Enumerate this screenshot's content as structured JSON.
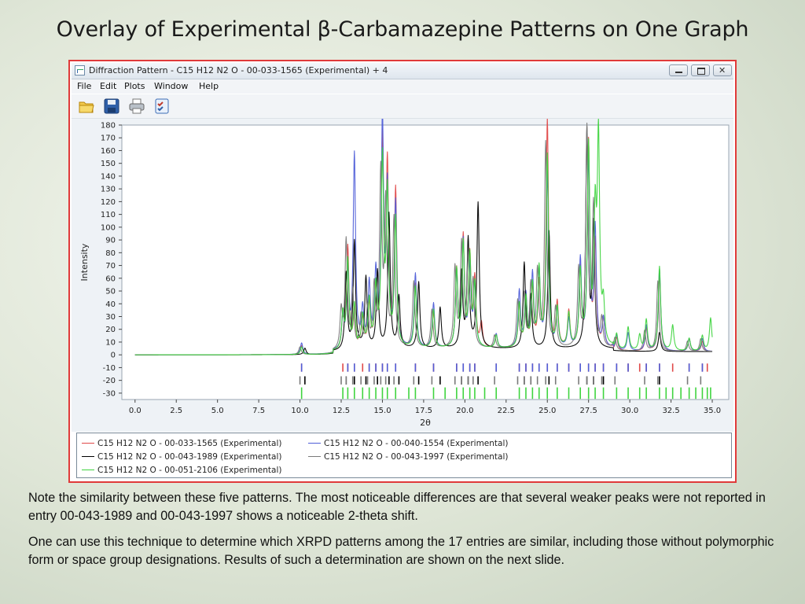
{
  "slide": {
    "title": "Overlay of Experimental β-Carbamazepine Patterns on One Graph",
    "note1": "Note the similarity between these five patterns.  The most noticeable differences are that several weaker peaks were not reported in entry 00-043-1989 and 00-043-1997 shows a noticeable 2-theta shift.",
    "note2": "One can use this technique to determine which XRPD patterns among the 17 entries are similar, including those without polymorphic form or space group designations.  Results of such a determination are shown on the next slide."
  },
  "window": {
    "title": "Diffraction Pattern - C15 H12 N2 O - 00-033-1565 (Experimental) + 4",
    "menu": [
      "File",
      "Edit",
      "Plots",
      "Window",
      "Help"
    ],
    "toolbar_icons": [
      "open-folder-icon",
      "save-disk-icon",
      "printer-icon",
      "checklist-icon"
    ]
  },
  "chart_data": {
    "type": "line",
    "xlabel": "2θ",
    "ylabel": "Intensity",
    "xlim": [
      -0.8,
      36
    ],
    "ylim": [
      -35,
      180
    ],
    "xticks": [
      0.0,
      2.5,
      5.0,
      7.5,
      10.0,
      12.5,
      15.0,
      17.5,
      20.0,
      22.5,
      25.0,
      27.5,
      30.0,
      32.5,
      35.0
    ],
    "yticks": [
      -30,
      -20,
      -10,
      0,
      10,
      20,
      30,
      40,
      50,
      60,
      70,
      80,
      90,
      100,
      110,
      120,
      130,
      140,
      150,
      160,
      170,
      180
    ],
    "x_range": [
      0,
      35
    ],
    "legend_position": "bottom",
    "series": [
      {
        "name": "C15 H12 N2 O - 00-033-1565 (Experimental)",
        "color": "#e04848",
        "peaks": [
          [
            10.1,
            7
          ],
          [
            12.6,
            25
          ],
          [
            12.9,
            80
          ],
          [
            13.3,
            30
          ],
          [
            13.8,
            22
          ],
          [
            14.2,
            33
          ],
          [
            14.6,
            42
          ],
          [
            15.0,
            158
          ],
          [
            15.3,
            138
          ],
          [
            15.8,
            122
          ],
          [
            17.0,
            50
          ],
          [
            18.1,
            28
          ],
          [
            19.5,
            60
          ],
          [
            19.9,
            85
          ],
          [
            20.3,
            70
          ],
          [
            20.6,
            52
          ],
          [
            21.0,
            18
          ],
          [
            21.9,
            10
          ],
          [
            23.3,
            34
          ],
          [
            23.7,
            38
          ],
          [
            24.1,
            46
          ],
          [
            24.5,
            48
          ],
          [
            25.0,
            178
          ],
          [
            25.6,
            34
          ],
          [
            26.3,
            28
          ],
          [
            27.0,
            60
          ],
          [
            27.5,
            160
          ],
          [
            27.9,
            80
          ],
          [
            28.4,
            22
          ],
          [
            29.2,
            10
          ],
          [
            31.0,
            18
          ],
          [
            31.8,
            60
          ],
          [
            33.6,
            10
          ],
          [
            34.4,
            8
          ]
        ],
        "sticks": [
          10.1,
          12.6,
          12.9,
          13.3,
          13.8,
          14.2,
          14.6,
          15.0,
          15.3,
          15.8,
          17.0,
          18.1,
          19.5,
          19.9,
          20.3,
          20.6,
          21.9,
          23.3,
          23.7,
          24.1,
          24.5,
          25.0,
          25.6,
          26.3,
          27.0,
          27.5,
          27.9,
          28.4,
          29.2,
          29.9,
          30.6,
          31.0,
          31.8,
          32.6,
          33.6,
          34.4,
          34.7
        ],
        "stick_level": -10
      },
      {
        "name": "C15 H12 N2 O - 00-040-1554 (Experimental)",
        "color": "#4f5ed8",
        "peaks": [
          [
            10.1,
            9
          ],
          [
            12.6,
            24
          ],
          [
            12.9,
            60
          ],
          [
            13.3,
            152
          ],
          [
            13.8,
            28
          ],
          [
            14.2,
            48
          ],
          [
            14.6,
            55
          ],
          [
            15.0,
            175
          ],
          [
            15.3,
            120
          ],
          [
            15.8,
            112
          ],
          [
            17.0,
            58
          ],
          [
            18.1,
            35
          ],
          [
            19.5,
            58
          ],
          [
            19.9,
            82
          ],
          [
            20.3,
            62
          ],
          [
            20.6,
            48
          ],
          [
            21.9,
            11
          ],
          [
            23.3,
            44
          ],
          [
            23.7,
            40
          ],
          [
            24.1,
            56
          ],
          [
            24.5,
            58
          ],
          [
            25.0,
            136
          ],
          [
            25.6,
            30
          ],
          [
            26.3,
            22
          ],
          [
            27.0,
            68
          ],
          [
            27.5,
            148
          ],
          [
            27.9,
            92
          ],
          [
            28.4,
            22
          ],
          [
            29.2,
            12
          ],
          [
            29.9,
            14
          ],
          [
            31.0,
            20
          ],
          [
            31.8,
            64
          ],
          [
            33.6,
            10
          ],
          [
            34.4,
            10
          ]
        ],
        "sticks": [
          10.1,
          12.9,
          13.3,
          14.2,
          14.6,
          15.0,
          15.3,
          15.8,
          17.0,
          18.1,
          19.5,
          19.9,
          20.3,
          20.6,
          21.9,
          23.3,
          23.7,
          24.1,
          24.5,
          25.0,
          25.6,
          26.3,
          27.0,
          27.5,
          27.9,
          28.4,
          29.2,
          29.9,
          31.0,
          31.8,
          33.6,
          34.4
        ],
        "stick_level": -10
      },
      {
        "name": "C15 H12 N2 O - 00-043-1989 (Experimental)",
        "color": "#000000",
        "peaks": [
          [
            10.3,
            5
          ],
          [
            12.8,
            60
          ],
          [
            13.3,
            85
          ],
          [
            14.0,
            55
          ],
          [
            14.7,
            60
          ],
          [
            15.4,
            105
          ],
          [
            16.0,
            40
          ],
          [
            17.2,
            52
          ],
          [
            18.5,
            32
          ],
          [
            19.8,
            58
          ],
          [
            20.2,
            84
          ],
          [
            20.8,
            113
          ],
          [
            23.6,
            66
          ],
          [
            24.0,
            40
          ],
          [
            25.1,
            92
          ],
          [
            27.4,
            170
          ],
          [
            27.8,
            95
          ],
          [
            31.8,
            15
          ]
        ],
        "sticks": [
          10.3,
          12.8,
          13.3,
          14.0,
          14.7,
          15.4,
          16.0,
          17.2,
          18.5,
          19.8,
          20.2,
          20.8,
          23.6,
          24.0,
          25.1,
          27.4,
          27.8,
          28.4,
          31.8
        ],
        "stick_level": -20
      },
      {
        "name": "C15 H12 N2 O - 00-043-1997 (Experimental)",
        "color": "#7a7a7a",
        "peaks": [
          [
            10.0,
            6
          ],
          [
            12.5,
            30
          ],
          [
            12.8,
            85
          ],
          [
            13.2,
            45
          ],
          [
            13.7,
            24
          ],
          [
            14.1,
            30
          ],
          [
            14.5,
            45
          ],
          [
            14.9,
            135
          ],
          [
            15.2,
            110
          ],
          [
            15.7,
            100
          ],
          [
            16.9,
            52
          ],
          [
            18.0,
            30
          ],
          [
            19.4,
            62
          ],
          [
            19.8,
            80
          ],
          [
            20.2,
            68
          ],
          [
            20.5,
            50
          ],
          [
            21.8,
            10
          ],
          [
            23.2,
            36
          ],
          [
            23.6,
            40
          ],
          [
            24.0,
            48
          ],
          [
            24.4,
            58
          ],
          [
            24.9,
            160
          ],
          [
            25.5,
            30
          ],
          [
            26.9,
            60
          ],
          [
            27.4,
            170
          ],
          [
            27.8,
            110
          ],
          [
            28.3,
            22
          ],
          [
            29.1,
            10
          ],
          [
            30.9,
            16
          ],
          [
            31.7,
            55
          ],
          [
            33.5,
            8
          ],
          [
            34.3,
            10
          ]
        ],
        "sticks": [
          10.0,
          12.5,
          12.8,
          13.2,
          13.7,
          14.1,
          14.5,
          14.9,
          15.2,
          15.7,
          16.9,
          18.0,
          19.4,
          19.8,
          20.2,
          20.5,
          21.8,
          23.2,
          23.6,
          24.0,
          24.4,
          24.9,
          25.5,
          26.9,
          27.4,
          27.8,
          28.3,
          29.1,
          30.9,
          31.7,
          33.5,
          34.3
        ],
        "stick_level": -20
      },
      {
        "name": "C15 H12 N2 O - 00-051-2106 (Experimental)",
        "color": "#3fd43f",
        "peaks": [
          [
            10.1,
            6
          ],
          [
            12.6,
            28
          ],
          [
            12.9,
            70
          ],
          [
            13.3,
            34
          ],
          [
            13.8,
            24
          ],
          [
            14.2,
            36
          ],
          [
            14.6,
            45
          ],
          [
            15.0,
            145
          ],
          [
            15.3,
            118
          ],
          [
            15.8,
            100
          ],
          [
            17.0,
            48
          ],
          [
            18.1,
            30
          ],
          [
            19.5,
            60
          ],
          [
            19.9,
            80
          ],
          [
            20.3,
            70
          ],
          [
            20.6,
            48
          ],
          [
            21.9,
            10
          ],
          [
            23.3,
            34
          ],
          [
            23.7,
            38
          ],
          [
            24.1,
            48
          ],
          [
            24.5,
            60
          ],
          [
            25.0,
            150
          ],
          [
            25.6,
            30
          ],
          [
            26.3,
            26
          ],
          [
            27.0,
            58
          ],
          [
            27.5,
            155
          ],
          [
            27.9,
            96
          ],
          [
            28.1,
            160
          ],
          [
            28.4,
            30
          ],
          [
            29.2,
            12
          ],
          [
            29.9,
            18
          ],
          [
            30.6,
            12
          ],
          [
            31.0,
            24
          ],
          [
            31.8,
            66
          ],
          [
            32.6,
            20
          ],
          [
            33.6,
            10
          ],
          [
            34.4,
            12
          ],
          [
            34.9,
            26
          ]
        ],
        "sticks": [
          10.1,
          12.6,
          12.9,
          13.3,
          13.8,
          14.2,
          14.6,
          15.0,
          15.3,
          15.8,
          16.6,
          17.0,
          18.1,
          18.8,
          19.5,
          19.9,
          20.3,
          20.6,
          21.2,
          21.9,
          23.3,
          23.7,
          24.1,
          24.5,
          25.0,
          25.6,
          26.3,
          27.0,
          27.5,
          27.9,
          28.4,
          29.2,
          29.9,
          30.6,
          31.0,
          31.8,
          32.2,
          32.6,
          33.1,
          33.6,
          34.0,
          34.4,
          34.7,
          34.9
        ],
        "stick_level": -30
      }
    ]
  }
}
